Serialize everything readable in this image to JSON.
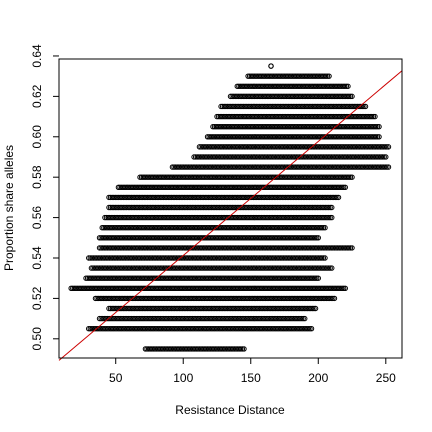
{
  "chart_data": {
    "type": "scatter",
    "title": "",
    "xlabel": "Resistance Distance",
    "ylabel": "Proportion share alleles",
    "xlim": [
      8,
      262
    ],
    "ylim": [
      0.4905,
      0.6385
    ],
    "x_ticks": [
      50,
      100,
      150,
      200,
      250
    ],
    "y_ticks": [
      0.5,
      0.52,
      0.54,
      0.56,
      0.58,
      0.6,
      0.62,
      0.64
    ],
    "x_tick_labels": [
      "50",
      "100",
      "150",
      "200",
      "250"
    ],
    "y_tick_labels": [
      "0.50",
      "0.52",
      "0.54",
      "0.56",
      "0.58",
      "0.60",
      "0.62",
      "0.64"
    ],
    "grid": false,
    "legend": "none",
    "point_marker": "open-circle",
    "point_color": "#000000",
    "fit_line": {
      "color": "#cc0000",
      "x": [
        8,
        262
      ],
      "y": [
        0.4893,
        0.6327
      ]
    },
    "bands": [
      {
        "y": 0.495,
        "x_min": 72,
        "x_max": 145
      },
      {
        "y": 0.505,
        "x_min": 30,
        "x_max": 195
      },
      {
        "y": 0.51,
        "x_min": 38,
        "x_max": 190
      },
      {
        "y": 0.515,
        "x_min": 45,
        "x_max": 198
      },
      {
        "y": 0.52,
        "x_min": 35,
        "x_max": 212
      },
      {
        "y": 0.525,
        "x_min": 17,
        "x_max": 220
      },
      {
        "y": 0.53,
        "x_min": 28,
        "x_max": 200
      },
      {
        "y": 0.535,
        "x_min": 32,
        "x_max": 210
      },
      {
        "y": 0.54,
        "x_min": 30,
        "x_max": 205
      },
      {
        "y": 0.545,
        "x_min": 38,
        "x_max": 225
      },
      {
        "y": 0.55,
        "x_min": 38,
        "x_max": 200
      },
      {
        "y": 0.555,
        "x_min": 40,
        "x_max": 205
      },
      {
        "y": 0.56,
        "x_min": 42,
        "x_max": 210
      },
      {
        "y": 0.565,
        "x_min": 45,
        "x_max": 210
      },
      {
        "y": 0.57,
        "x_min": 45,
        "x_max": 215
      },
      {
        "y": 0.575,
        "x_min": 52,
        "x_max": 220
      },
      {
        "y": 0.58,
        "x_min": 68,
        "x_max": 225
      },
      {
        "y": 0.585,
        "x_min": 92,
        "x_max": 252
      },
      {
        "y": 0.59,
        "x_min": 108,
        "x_max": 250
      },
      {
        "y": 0.595,
        "x_min": 112,
        "x_max": 252
      },
      {
        "y": 0.6,
        "x_min": 118,
        "x_max": 245
      },
      {
        "y": 0.605,
        "x_min": 122,
        "x_max": 245
      },
      {
        "y": 0.61,
        "x_min": 125,
        "x_max": 242
      },
      {
        "y": 0.615,
        "x_min": 128,
        "x_max": 235
      },
      {
        "y": 0.62,
        "x_min": 135,
        "x_max": 225
      },
      {
        "y": 0.625,
        "x_min": 140,
        "x_max": 222
      },
      {
        "y": 0.63,
        "x_min": 148,
        "x_max": 208
      },
      {
        "y": 0.635,
        "x_min": 165,
        "x_max": 165
      }
    ]
  }
}
